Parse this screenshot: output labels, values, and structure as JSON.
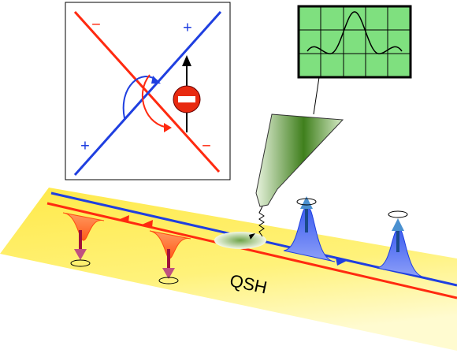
{
  "inset": {
    "labels": [
      "−",
      "+",
      "+",
      "−"
    ]
  },
  "label": "QSH"
}
